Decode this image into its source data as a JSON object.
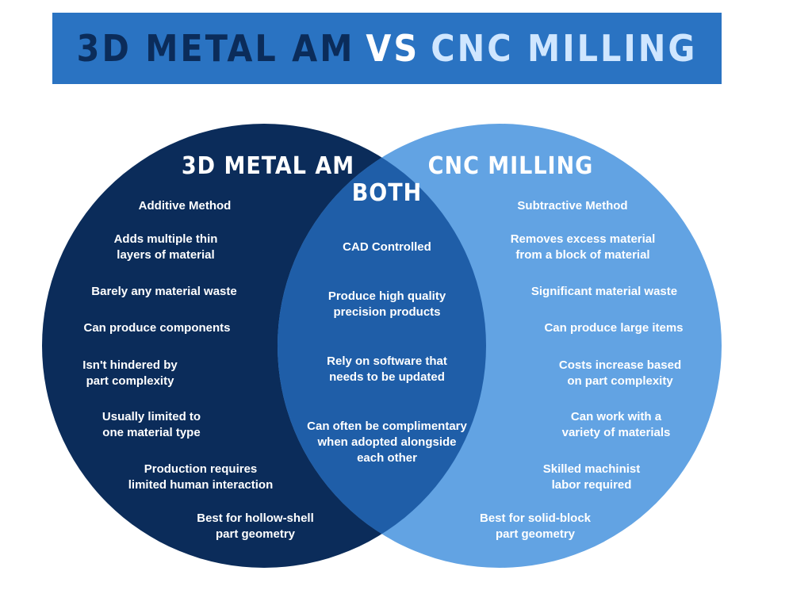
{
  "title": {
    "part1": "3D METAL AM",
    "part2": "VS",
    "part3": "CNC MILLING"
  },
  "colors": {
    "banner": "#2a73c2",
    "left_circle": "#0b2c5a",
    "right_circle": "#62a3e3",
    "overlap": "#1f5ea8"
  },
  "left": {
    "heading": "3D METAL AM",
    "items": [
      "Additive Method",
      "Adds multiple thin\nlayers of material",
      "Barely any material waste",
      "Can produce components",
      "Isn't hindered by\npart complexity",
      "Usually limited to\none material type",
      "Production requires\nlimited human interaction",
      "Best for hollow-shell\npart geometry"
    ]
  },
  "both": {
    "heading": "BOTH",
    "items": [
      "CAD Controlled",
      "Produce high quality\nprecision products",
      "Rely on software that\nneeds to be updated",
      "Can often be complimentary\nwhen adopted alongside\neach other"
    ]
  },
  "right": {
    "heading": "CNC MILLING",
    "items": [
      "Subtractive Method",
      "Removes excess material\nfrom a block of material",
      "Significant material waste",
      "Can produce large items",
      "Costs increase based\non part complexity",
      "Can work with a\nvariety of materials",
      "Skilled machinist\nlabor required",
      "Best for solid-block\npart geometry"
    ]
  }
}
